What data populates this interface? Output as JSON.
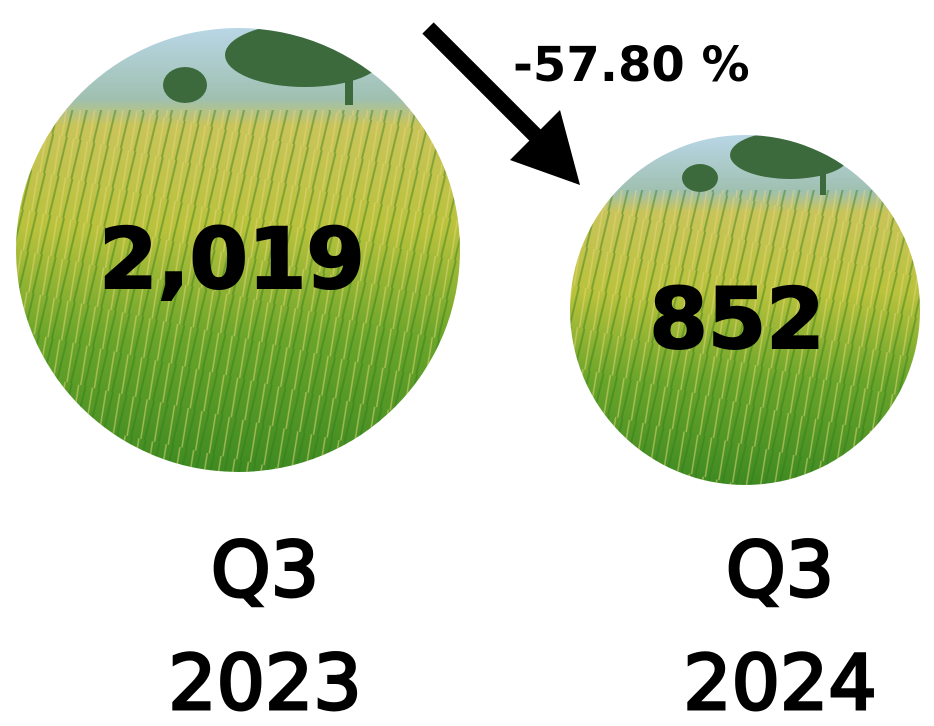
{
  "change": "-57.80 %",
  "items": [
    {
      "value": "2,019",
      "quarter": "Q3",
      "year": "2023"
    },
    {
      "value": "852",
      "quarter": "Q3",
      "year": "2024"
    }
  ]
}
